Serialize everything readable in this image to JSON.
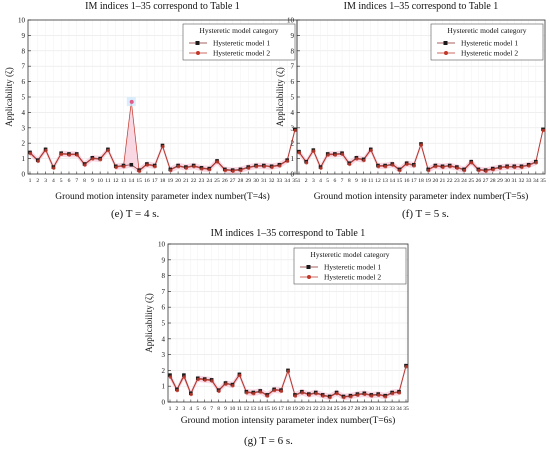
{
  "captions": [
    "(e) T = 4 s.",
    "(f) T = 5 s.",
    "(g) T = 6 s."
  ],
  "chart_data": [
    {
      "type": "line",
      "title": "IM indices 1–35 correspond to Table 1",
      "xlabel": "Ground motion intensity parameter index number(T=4s)",
      "ylabel": "Applicability (ζ)",
      "categories": [
        1,
        2,
        3,
        4,
        5,
        6,
        7,
        8,
        9,
        10,
        11,
        12,
        13,
        14,
        15,
        16,
        17,
        18,
        19,
        20,
        21,
        22,
        23,
        24,
        25,
        26,
        27,
        28,
        29,
        30,
        31,
        32,
        33,
        34,
        35
      ],
      "ylim": [
        0,
        10
      ],
      "yticks": [
        0,
        1,
        2,
        3,
        4,
        5,
        6,
        7,
        8,
        9,
        10
      ],
      "legend": {
        "title": "Hysteretic model category",
        "position": "top-right"
      },
      "series": [
        {
          "name": "Hysteretic model 1",
          "color": "#1a1a1a",
          "marker": "square",
          "values": [
            1.4,
            0.9,
            1.6,
            0.45,
            1.35,
            1.3,
            1.3,
            0.65,
            1.05,
            1.0,
            1.6,
            0.5,
            0.55,
            0.6,
            0.25,
            0.65,
            0.55,
            1.85,
            0.3,
            0.55,
            0.45,
            0.55,
            0.4,
            0.35,
            0.85,
            0.3,
            0.25,
            0.3,
            0.45,
            0.55,
            0.55,
            0.5,
            0.6,
            0.9,
            2.9
          ]
        },
        {
          "name": "Hysteretic model 2",
          "color": "#c0392b",
          "marker": "circle",
          "values": [
            1.35,
            0.85,
            1.55,
            0.4,
            1.3,
            1.25,
            1.25,
            0.6,
            1.0,
            0.95,
            1.55,
            0.45,
            0.5,
            4.7,
            0.2,
            0.6,
            0.5,
            1.8,
            0.25,
            0.5,
            0.4,
            0.5,
            0.35,
            0.3,
            0.8,
            0.25,
            0.2,
            0.25,
            0.4,
            0.5,
            0.5,
            0.45,
            0.55,
            0.85,
            2.85
          ]
        }
      ]
    },
    {
      "type": "line",
      "title": "IM indices 1–35 correspond to Table 1",
      "xlabel": "Ground motion intensity parameter index number(T=5s)",
      "ylabel": "Applicability (ζ)",
      "categories": [
        1,
        2,
        3,
        4,
        5,
        6,
        7,
        8,
        9,
        10,
        11,
        12,
        13,
        14,
        15,
        16,
        17,
        18,
        19,
        20,
        21,
        22,
        23,
        24,
        25,
        26,
        27,
        28,
        29,
        30,
        31,
        32,
        33,
        34,
        35
      ],
      "ylim": [
        0,
        10
      ],
      "yticks": [
        0,
        1,
        2,
        3,
        4,
        5,
        6,
        7,
        8,
        9,
        10
      ],
      "legend": {
        "title": "Hysteretic model category",
        "position": "top-right"
      },
      "series": [
        {
          "name": "Hysteretic model 1",
          "color": "#1a1a1a",
          "marker": "square",
          "values": [
            1.45,
            0.8,
            1.55,
            0.45,
            1.3,
            1.3,
            1.35,
            0.7,
            1.05,
            0.95,
            1.6,
            0.55,
            0.55,
            0.65,
            0.3,
            0.7,
            0.6,
            1.95,
            0.3,
            0.55,
            0.5,
            0.55,
            0.45,
            0.3,
            0.8,
            0.3,
            0.25,
            0.35,
            0.45,
            0.5,
            0.5,
            0.5,
            0.6,
            0.8,
            2.9
          ]
        },
        {
          "name": "Hysteretic model 2",
          "color": "#c0392b",
          "marker": "circle",
          "values": [
            1.4,
            0.75,
            1.5,
            0.4,
            1.25,
            1.25,
            1.3,
            0.65,
            1.0,
            0.9,
            1.55,
            0.5,
            0.5,
            0.6,
            0.25,
            0.65,
            0.55,
            1.9,
            0.25,
            0.5,
            0.45,
            0.5,
            0.4,
            0.25,
            0.75,
            0.25,
            0.2,
            0.3,
            0.4,
            0.45,
            0.45,
            0.45,
            0.55,
            0.75,
            2.85
          ]
        }
      ]
    },
    {
      "type": "line",
      "title": "IM indices 1–35 correspond to Table 1",
      "xlabel": "Ground motion intensity parameter index number(T=6s)",
      "ylabel": "Applicability (ζ)",
      "categories": [
        1,
        2,
        3,
        4,
        5,
        6,
        7,
        8,
        9,
        10,
        11,
        12,
        13,
        14,
        15,
        16,
        17,
        18,
        19,
        20,
        21,
        22,
        23,
        24,
        25,
        26,
        27,
        28,
        29,
        30,
        31,
        32,
        33,
        34,
        35
      ],
      "ylim": [
        0,
        10
      ],
      "yticks": [
        0,
        1,
        2,
        3,
        4,
        5,
        6,
        7,
        8,
        9,
        10
      ],
      "legend": {
        "title": "Hysteretic model category",
        "position": "top-right"
      },
      "series": [
        {
          "name": "Hysteretic model 1",
          "color": "#1a1a1a",
          "marker": "square",
          "values": [
            1.7,
            0.8,
            1.7,
            0.55,
            1.5,
            1.45,
            1.4,
            0.75,
            1.2,
            1.1,
            1.75,
            0.65,
            0.6,
            0.7,
            0.45,
            0.8,
            0.75,
            2.0,
            0.45,
            0.65,
            0.5,
            0.6,
            0.45,
            0.35,
            0.6,
            0.35,
            0.4,
            0.5,
            0.55,
            0.45,
            0.5,
            0.4,
            0.6,
            0.65,
            2.3
          ]
        },
        {
          "name": "Hysteretic model 2",
          "color": "#c0392b",
          "marker": "circle",
          "values": [
            1.6,
            0.75,
            1.6,
            0.5,
            1.45,
            1.4,
            1.35,
            0.7,
            1.15,
            1.05,
            1.7,
            0.6,
            0.55,
            0.65,
            0.4,
            0.75,
            0.7,
            1.95,
            0.4,
            0.6,
            0.45,
            0.55,
            0.4,
            0.3,
            0.55,
            0.3,
            0.35,
            0.45,
            0.5,
            0.4,
            0.45,
            0.35,
            0.55,
            0.6,
            2.25
          ]
        }
      ]
    }
  ]
}
